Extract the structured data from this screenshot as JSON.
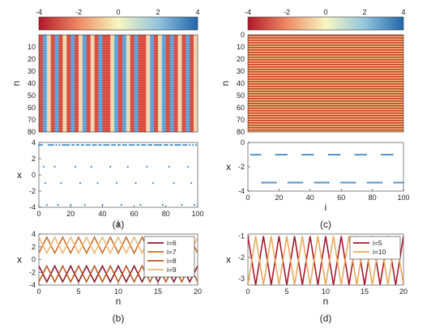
{
  "chart_data": [
    {
      "id": "a",
      "type": "heatmap",
      "panel_label": "(a)",
      "colorbar": {
        "ticks": [
          "-4",
          "-2",
          "0",
          "2",
          "4"
        ],
        "range": [
          -4,
          4
        ],
        "colors": [
          "#b2182b",
          "#f4a582",
          "#f7f7c0",
          "#92c5de",
          "#2166ac"
        ]
      },
      "ylabel": "n",
      "yticks": [
        "10",
        "20",
        "30",
        "40",
        "50",
        "60",
        "70",
        "80"
      ],
      "xlim": [
        0,
        100
      ],
      "ylim": [
        0,
        80
      ],
      "column_states": [
        "H",
        "L",
        "M",
        "H",
        "L",
        "H",
        "M",
        "H",
        "L",
        "H",
        "M",
        "L",
        "H",
        "M",
        "H",
        "L",
        "H",
        "H",
        "M",
        "L",
        "H",
        "L",
        "M",
        "H",
        "L",
        "H",
        "H",
        "M",
        "L",
        "H",
        "M",
        "L",
        "H",
        "L",
        "H",
        "M",
        "H",
        "L",
        "H",
        "M"
      ],
      "state_colors": {
        "H": "#d9483b",
        "L": "#5aa0d8",
        "M": "#efd6b0"
      }
    },
    {
      "id": "a-bottom",
      "type": "scatter",
      "xlabel": "i",
      "ylabel": "x",
      "xlim": [
        0,
        100
      ],
      "ylim": [
        -4,
        4
      ],
      "xticks": [
        "0",
        "20",
        "40",
        "60",
        "80",
        "100"
      ],
      "yticks": [
        "4",
        "2",
        "0",
        "-2",
        "-4"
      ],
      "series": [
        {
          "color": "#4a90c8",
          "levels": [
            3.7,
            1.0,
            -1.0,
            -3.7
          ],
          "pattern": [
            0,
            0,
            0,
            1,
            2,
            3,
            0,
            0,
            0,
            0,
            1,
            0,
            3,
            0,
            2,
            0,
            0,
            0,
            0,
            0,
            3,
            0,
            0,
            1,
            0,
            0,
            2,
            0,
            0,
            3,
            0,
            0,
            0,
            1,
            0,
            0,
            0,
            2,
            0,
            0,
            3,
            0,
            0,
            0,
            0,
            1,
            0,
            0,
            0,
            2,
            0,
            0,
            3,
            0,
            0,
            0,
            1,
            0,
            0,
            0,
            0,
            2,
            0,
            0,
            3,
            0,
            0,
            0,
            1,
            0,
            0,
            0,
            2,
            0,
            0,
            0,
            0,
            0,
            3,
            0,
            0,
            0,
            1,
            0,
            0,
            2,
            0,
            0,
            0,
            0,
            3,
            0,
            0,
            0,
            1,
            0,
            2,
            0,
            3,
            0
          ]
        }
      ]
    },
    {
      "id": "b",
      "type": "line",
      "panel_label": "(b)",
      "xlabel": "n",
      "ylabel": "x",
      "xlim": [
        0,
        20
      ],
      "ylim": [
        -4,
        4
      ],
      "xticks": [
        "0",
        "5",
        "10",
        "15",
        "20"
      ],
      "yticks": [
        "4",
        "2",
        "0",
        "-2",
        "-4"
      ],
      "series": [
        {
          "name": "i=6",
          "color": "#8b1a2b",
          "low": -3.5,
          "high": -1.0,
          "phase": 0
        },
        {
          "name": "i=7",
          "color": "#c8702a",
          "low": 1.0,
          "high": 3.5,
          "phase": 1
        },
        {
          "name": "i=8",
          "color": "#b85a1e",
          "low": -3.5,
          "high": -1.0,
          "phase": 1
        },
        {
          "name": "i=9",
          "color": "#f0b878",
          "low": 1.0,
          "high": 3.5,
          "phase": 0
        }
      ],
      "legend": "top-right"
    },
    {
      "id": "c",
      "type": "heatmap",
      "panel_label": "(c)",
      "colorbar": {
        "ticks": [
          "-4",
          "-2",
          "0",
          "2",
          "4"
        ],
        "range": [
          -4,
          4
        ],
        "colors": [
          "#b2182b",
          "#f4a582",
          "#f7f7c0",
          "#92c5de",
          "#2166ac"
        ]
      },
      "ylabel": "n",
      "yticks": [
        "0",
        "10",
        "20",
        "30",
        "40",
        "50",
        "60",
        "70",
        "80"
      ],
      "ylim": [
        0,
        80
      ],
      "row_colors": [
        "#c0392b",
        "#f2c078"
      ]
    },
    {
      "id": "c-bottom",
      "type": "scatter",
      "xlabel": "i",
      "ylabel": "x",
      "xlim": [
        0,
        100
      ],
      "ylim": [
        -4,
        0
      ],
      "xticks": [
        "0",
        "20",
        "40",
        "60",
        "80",
        "100"
      ],
      "yticks": [
        "0",
        "-2",
        "-4"
      ],
      "series": [
        {
          "color": "#4a90c8",
          "segments": [
            [
              2,
              8,
              -1.0
            ],
            [
              9,
              18,
              -3.3
            ],
            [
              18,
              25,
              -1.0
            ],
            [
              26,
              35,
              -3.3
            ],
            [
              35,
              42,
              -1.0
            ],
            [
              43,
              52,
              -3.3
            ],
            [
              52,
              59,
              -1.0
            ],
            [
              60,
              69,
              -3.3
            ],
            [
              69,
              76,
              -1.0
            ],
            [
              77,
              86,
              -3.3
            ],
            [
              86,
              93,
              -1.0
            ],
            [
              94,
              100,
              -3.3
            ]
          ]
        }
      ]
    },
    {
      "id": "d",
      "type": "line",
      "panel_label": "(d)",
      "xlabel": "n",
      "ylabel": "x",
      "xlim": [
        0,
        20
      ],
      "ylim": [
        -3.3,
        -0.9
      ],
      "xticks": [
        "0",
        "5",
        "10",
        "15",
        "20"
      ],
      "yticks": [
        "-1",
        "-2",
        "-3"
      ],
      "series": [
        {
          "name": "i=5",
          "color": "#a5192c",
          "low": -3.3,
          "high": -1.0,
          "phase": 0
        },
        {
          "name": "i=10",
          "color": "#e8a95a",
          "low": -3.3,
          "high": -1.0,
          "phase": 1
        }
      ],
      "legend": "top-right"
    }
  ]
}
